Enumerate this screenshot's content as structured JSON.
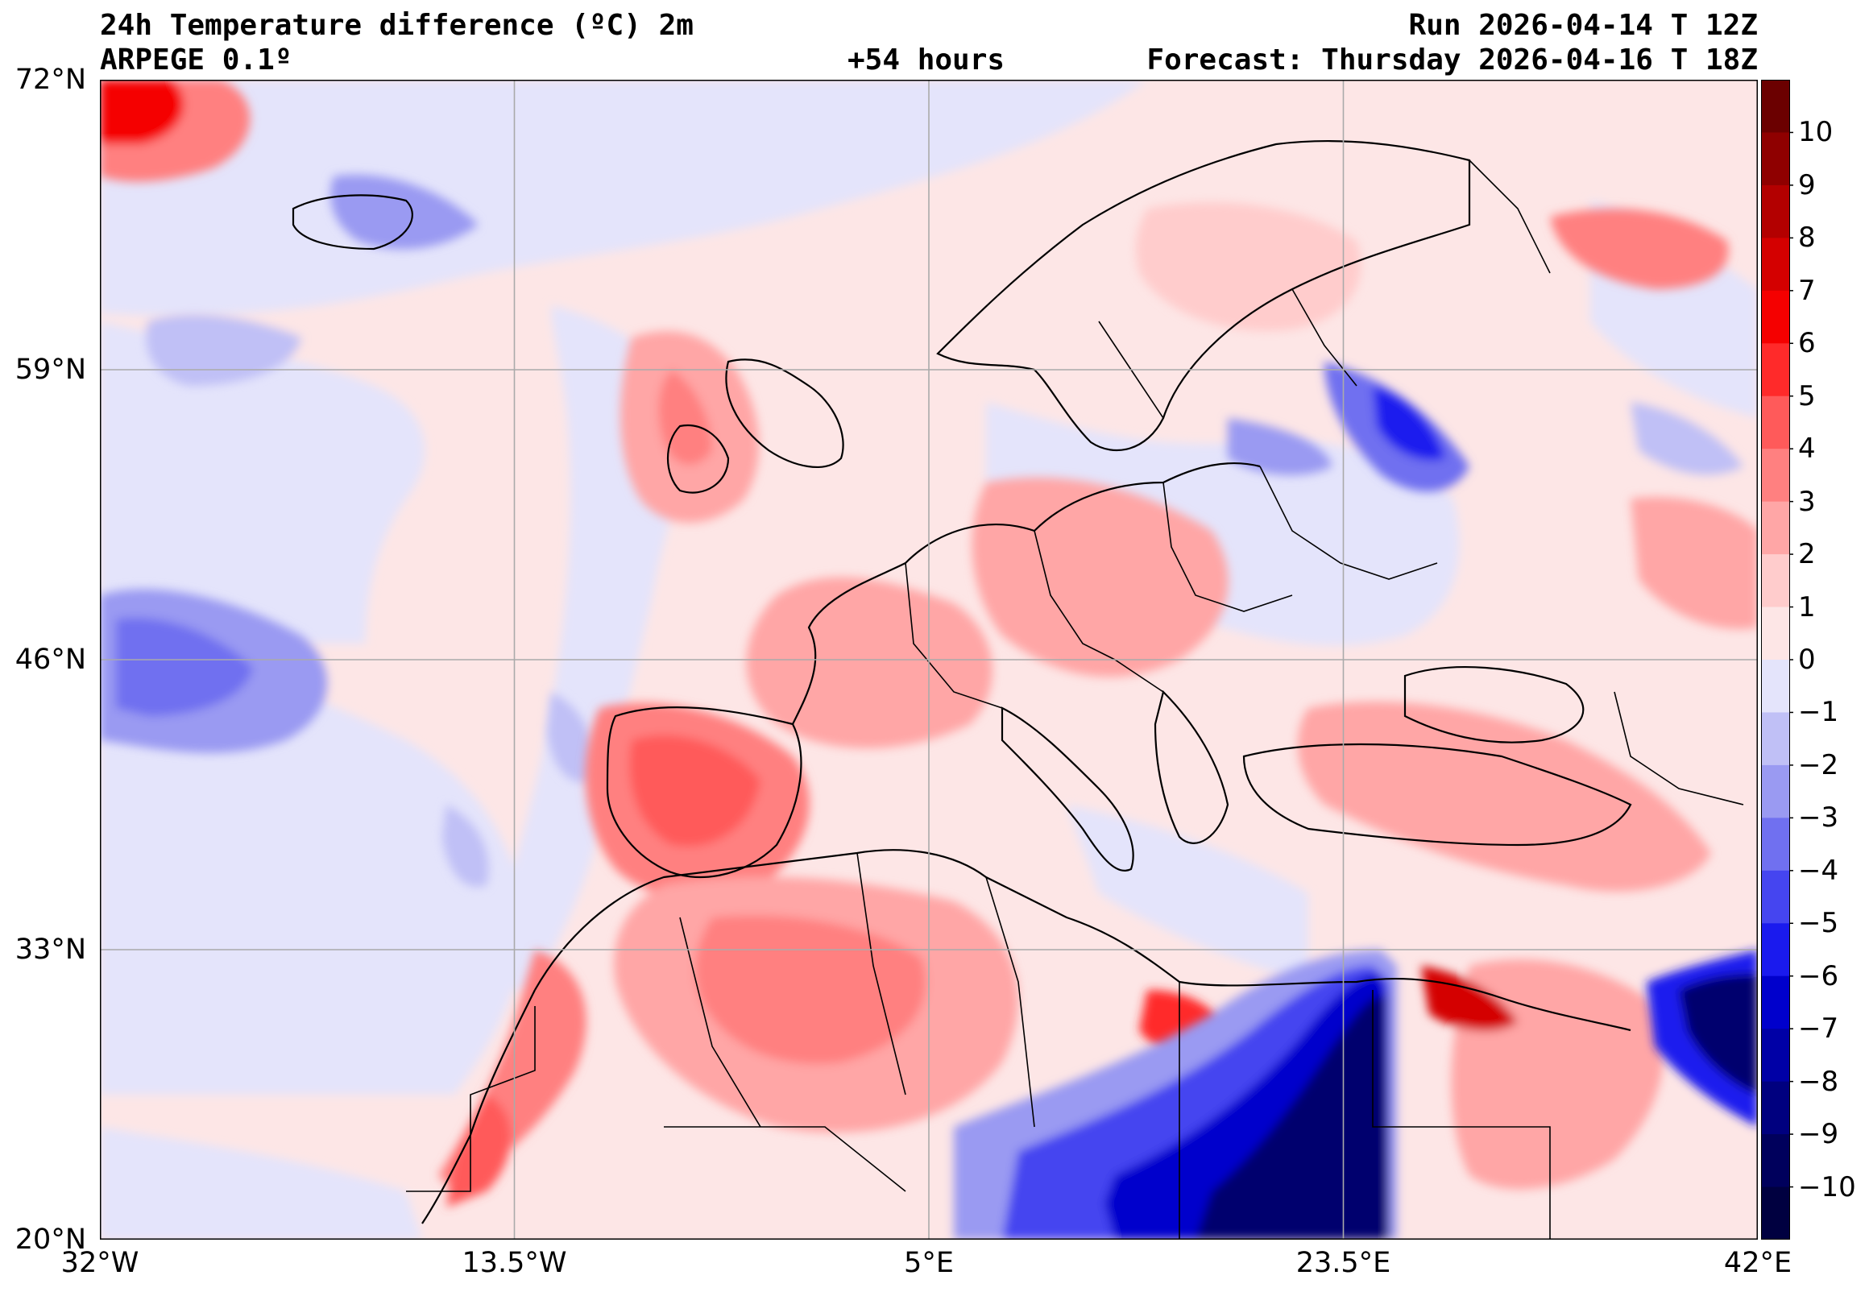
{
  "header": {
    "title": "24h Temperature difference (ºC) 2m",
    "model": "ARPEGE 0.1º",
    "lead": "+54 hours",
    "run": "Run 2026-04-14 T 12Z",
    "forecast": "Forecast: Thursday 2026-04-16 T 18Z"
  },
  "axes": {
    "lat_labels": [
      "72°N",
      "59°N",
      "46°N",
      "33°N",
      "20°N"
    ],
    "lon_labels": [
      "32°W",
      "13.5°W",
      "5°E",
      "23.5°E",
      "42°E"
    ]
  },
  "colorbar": {
    "labels": [
      "10",
      "9",
      "8",
      "7",
      "6",
      "5",
      "4",
      "3",
      "2",
      "1",
      "0",
      "−1",
      "−2",
      "−3",
      "−4",
      "−5",
      "−6",
      "−7",
      "−8",
      "−9",
      "−10"
    ],
    "colors": [
      "#6b0000",
      "#8f0000",
      "#b30000",
      "#d40000",
      "#f50000",
      "#ff2a2a",
      "#ff5a5a",
      "#ff8080",
      "#ffa6a6",
      "#ffcccc",
      "#fde6e6",
      "#e4e4fb",
      "#c0c0f6",
      "#9a9af2",
      "#7070f0",
      "#4545f0",
      "#1a1aee",
      "#0000cc",
      "#0000a6",
      "#00007f",
      "#00005c",
      "#000040"
    ]
  },
  "map": {
    "extent": {
      "lon_min": -32,
      "lon_max": 42,
      "lat_min": 20,
      "lat_max": 72
    },
    "grid_lons": [
      -13.5,
      5,
      23.5
    ],
    "grid_lats": [
      59,
      46,
      33
    ],
    "fields": {
      "background": "#fde6e6",
      "cool": "#e4e4fb",
      "cool2": "#c0c0f6",
      "cool3": "#9a9af2",
      "cool4": "#7070f0",
      "warm": "#ffcccc",
      "warm2": "#ffa6a6",
      "warm3": "#ff8080",
      "warm4": "#ff5a5a",
      "deep_blue": "#00006e"
    }
  }
}
